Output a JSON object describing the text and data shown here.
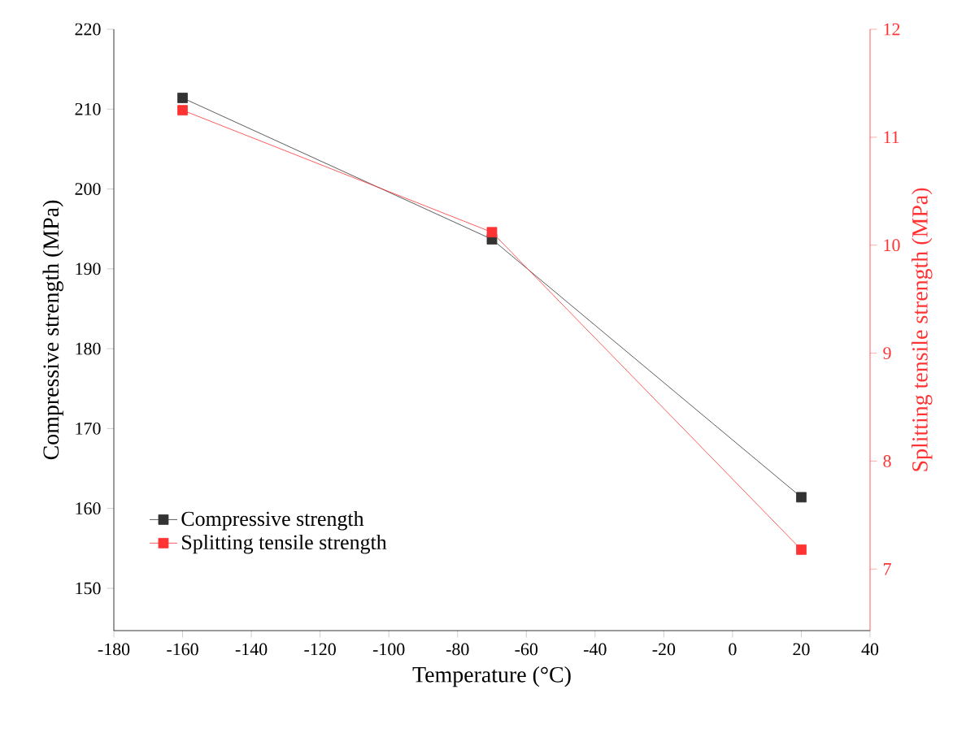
{
  "chart_data": {
    "type": "line",
    "xlabel": "Temperature (°C)",
    "ylabel": "Compressive strength (MPa)",
    "y2label": "Splitting tensile strength (MPa)",
    "x": [
      -160,
      -70,
      20
    ],
    "series": [
      {
        "name": "Compressive strength",
        "color": "#333333",
        "values": [
          211.4,
          193.7,
          161.4
        ],
        "axis": "y"
      },
      {
        "name": "Splitting tensile strength",
        "color": "#ff3333",
        "values": [
          11.25,
          10.12,
          7.18
        ],
        "axis": "y2"
      }
    ],
    "xlim": [
      -180,
      40
    ],
    "xticks": [
      -180,
      -160,
      -140,
      -120,
      -100,
      -80,
      -60,
      -40,
      -20,
      0,
      20,
      40
    ],
    "ylim": [
      144.7,
      220
    ],
    "yticks": [
      150,
      160,
      170,
      180,
      190,
      200,
      210,
      220
    ],
    "y2lim": [
      6.43,
      12
    ],
    "y2ticks": [
      7,
      8,
      9,
      10,
      11,
      12
    ],
    "marker": "square",
    "line_style": "solid",
    "legend": "bottom left",
    "grid": false
  }
}
